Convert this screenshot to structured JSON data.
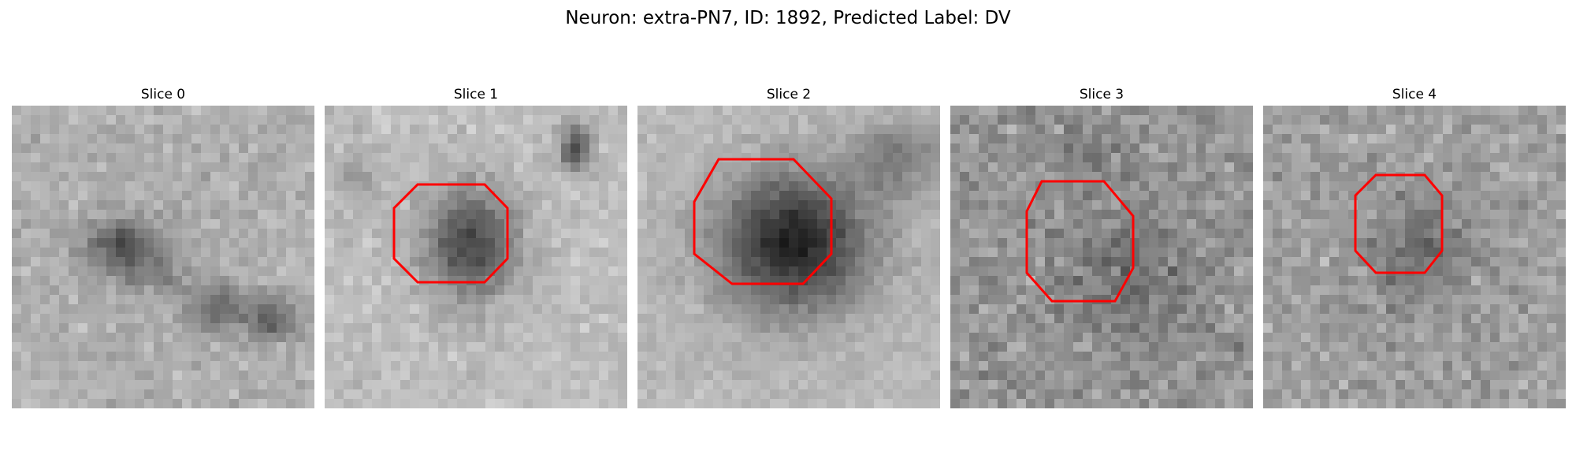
{
  "figure": {
    "title": "Neuron: extra-PN7, ID: 1892, Predicted Label: DV"
  },
  "colors": {
    "contour": "#ff0000",
    "background": "#ffffff"
  },
  "panels": [
    {
      "title": "Slice 0",
      "has_contour": false
    },
    {
      "title": "Slice 1",
      "has_contour": true
    },
    {
      "title": "Slice 2",
      "has_contour": true
    },
    {
      "title": "Slice 3",
      "has_contour": true
    },
    {
      "title": "Slice 4",
      "has_contour": true
    }
  ]
}
